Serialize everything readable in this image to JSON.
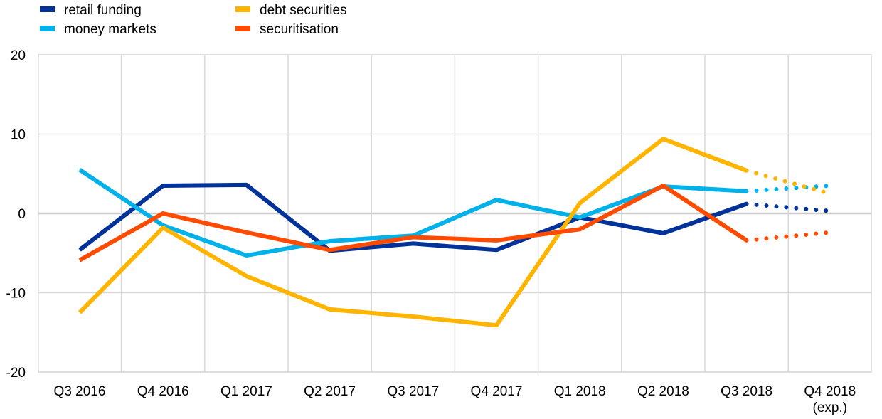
{
  "chart_data": {
    "type": "line",
    "categories": [
      "Q3 2016",
      "Q4 2016",
      "Q1 2017",
      "Q2 2017",
      "Q3 2017",
      "Q4 2017",
      "Q1 2018",
      "Q2 2018",
      "Q3 2018",
      "Q4 2018"
    ],
    "category_sublabels": [
      "",
      "",
      "",
      "",
      "",
      "",
      "",
      "",
      "",
      "(exp.)"
    ],
    "ylim": [
      -20,
      20
    ],
    "yticks": [
      -20,
      -10,
      0,
      10,
      20
    ],
    "grid": true,
    "legend_position": "top-left",
    "expected_segment": "dotted from Q3 2018 to Q4 2018 (exp.)",
    "series": [
      {
        "name": "retail funding",
        "color": "#003299",
        "values": [
          -4.6,
          3.5,
          3.6,
          -4.7,
          -3.8,
          -4.6,
          -0.5,
          -2.5,
          1.2,
          0.3
        ]
      },
      {
        "name": "money markets",
        "color": "#00B1EA",
        "values": [
          5.5,
          -1.5,
          -5.3,
          -3.5,
          -2.8,
          1.7,
          -0.5,
          3.4,
          2.8,
          3.5
        ]
      },
      {
        "name": "debt securities",
        "color": "#FFB400",
        "values": [
          -12.5,
          -1.8,
          -7.9,
          -12.1,
          -13.0,
          -14.1,
          1.3,
          9.4,
          5.4,
          2.5
        ]
      },
      {
        "name": "securitisation",
        "color": "#FF4B00",
        "values": [
          -5.9,
          0.0,
          -2.4,
          -4.6,
          -3.0,
          -3.4,
          -2.0,
          3.5,
          -3.4,
          -2.4
        ]
      }
    ]
  }
}
